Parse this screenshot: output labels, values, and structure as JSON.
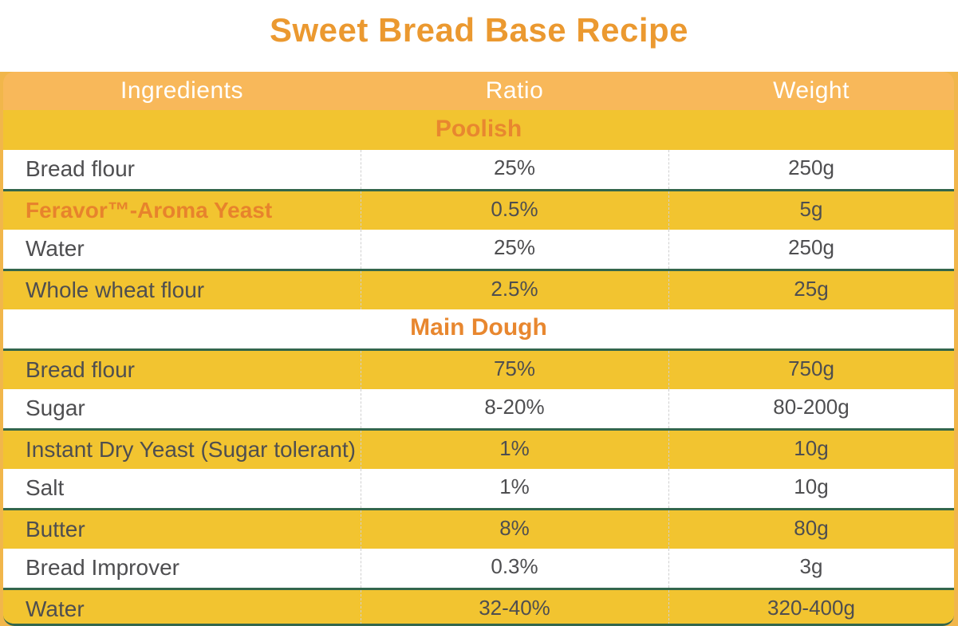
{
  "title": "Sweet Bread Base Recipe",
  "colors": {
    "page_background": "#F1B64B",
    "header_row": "#F8B85A",
    "zebra_yellow": "#F2C430",
    "zebra_white": "#FFFFFF",
    "title_text": "#EB9930",
    "section_text": "#E8872F",
    "highlight_text": "#E7832C",
    "body_text": "#4E4E50",
    "divider_green": "#33664C"
  },
  "table": {
    "columns": [
      "Ingredients",
      "Ratio",
      "Weight"
    ],
    "sections": [
      {
        "name": "Poolish",
        "rows": [
          {
            "ingredient": "Bread flour",
            "ratio": "25%",
            "weight": "250g"
          },
          {
            "ingredient": "Feravor™-Aroma Yeast",
            "ratio": "0.5%",
            "weight": "5g"
          },
          {
            "ingredient": "Water",
            "ratio": "25%",
            "weight": "250g"
          },
          {
            "ingredient": "Whole wheat flour",
            "ratio": "2.5%",
            "weight": "25g"
          }
        ]
      },
      {
        "name": "Main Dough",
        "rows": [
          {
            "ingredient": "Bread flour",
            "ratio": "75%",
            "weight": "750g"
          },
          {
            "ingredient": "Sugar",
            "ratio": "8-20%",
            "weight": "80-200g"
          },
          {
            "ingredient": "Instant Dry Yeast (Sugar tolerant)",
            "ratio": "1%",
            "weight": "10g"
          },
          {
            "ingredient": "Salt",
            "ratio": "1%",
            "weight": "10g"
          },
          {
            "ingredient": "Butter",
            "ratio": "8%",
            "weight": "80g"
          },
          {
            "ingredient": "Bread Improver",
            "ratio": "0.3%",
            "weight": "3g"
          },
          {
            "ingredient": "Water",
            "ratio": "32-40%",
            "weight": "320-400g"
          }
        ]
      }
    ]
  },
  "chart_data": {
    "type": "table",
    "title": "Sweet Bread Base Recipe",
    "columns": [
      "Ingredients",
      "Ratio",
      "Weight"
    ],
    "sections": [
      {
        "name": "Poolish",
        "rows": [
          [
            "Bread flour",
            "25%",
            "250g"
          ],
          [
            "Feravor™-Aroma Yeast",
            "0.5%",
            "5g"
          ],
          [
            "Water",
            "25%",
            "250g"
          ],
          [
            "Whole wheat flour",
            "2.5%",
            "25g"
          ]
        ]
      },
      {
        "name": "Main Dough",
        "rows": [
          [
            "Bread flour",
            "75%",
            "750g"
          ],
          [
            "Sugar",
            "8-20%",
            "80-200g"
          ],
          [
            "Instant Dry Yeast (Sugar tolerant)",
            "1%",
            "10g"
          ],
          [
            "Salt",
            "1%",
            "10g"
          ],
          [
            "Butter",
            "8%",
            "80g"
          ],
          [
            "Bread Improver",
            "0.3%",
            "3g"
          ],
          [
            "Water",
            "32-40%",
            "320-400g"
          ]
        ]
      }
    ],
    "layout_hints": {
      "zebra_striping": true,
      "section_header_rows": [
        "Poolish",
        "Main Dough"
      ],
      "green_rule_under_white_rows": true,
      "dashed_column_separators": true
    }
  }
}
